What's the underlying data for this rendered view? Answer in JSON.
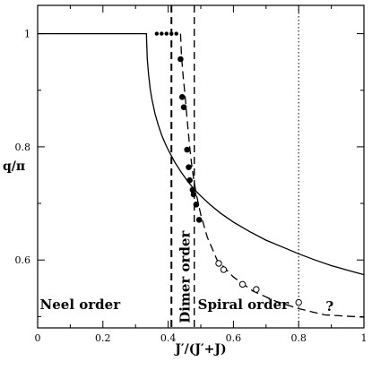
{
  "chart_data": {
    "type": "line",
    "xlabel": "J′/(J′+J)",
    "ylabel": "q/π",
    "xlim": [
      0,
      1
    ],
    "ylim": [
      0.48,
      1.05
    ],
    "x_ticks": [
      0,
      0.2,
      0.4,
      0.6,
      0.8,
      1
    ],
    "x_tick_labels": [
      "0",
      "0.2",
      "0.4",
      "0.6",
      "0.8",
      "1"
    ],
    "y_ticks": [
      0.6,
      0.8,
      1
    ],
    "y_tick_labels": [
      "0.6",
      "0.8",
      "1"
    ],
    "grid": false,
    "solid_curve": [
      [
        0,
        1.0
      ],
      [
        0.333,
        1.0
      ],
      [
        0.3333,
        1.0
      ],
      [
        0.336,
        0.955
      ],
      [
        0.34,
        0.927
      ],
      [
        0.345,
        0.902
      ],
      [
        0.35,
        0.885
      ],
      [
        0.36,
        0.858
      ],
      [
        0.37,
        0.838
      ],
      [
        0.38,
        0.821
      ],
      [
        0.39,
        0.807
      ],
      [
        0.4,
        0.795
      ],
      [
        0.42,
        0.773
      ],
      [
        0.44,
        0.755
      ],
      [
        0.46,
        0.739
      ],
      [
        0.48,
        0.725
      ],
      [
        0.5,
        0.713
      ],
      [
        0.53,
        0.697
      ],
      [
        0.56,
        0.683
      ],
      [
        0.6,
        0.667
      ],
      [
        0.65,
        0.65
      ],
      [
        0.7,
        0.635
      ],
      [
        0.75,
        0.623
      ],
      [
        0.8,
        0.611
      ],
      [
        0.85,
        0.6
      ],
      [
        0.9,
        0.59
      ],
      [
        0.95,
        0.582
      ],
      [
        1.0,
        0.574
      ]
    ],
    "dashed_curve": [
      [
        0.438,
        1.0
      ],
      [
        0.441,
        0.96
      ],
      [
        0.446,
        0.925
      ],
      [
        0.452,
        0.89
      ],
      [
        0.458,
        0.85
      ],
      [
        0.466,
        0.8
      ],
      [
        0.474,
        0.76
      ],
      [
        0.485,
        0.72
      ],
      [
        0.5,
        0.68
      ],
      [
        0.52,
        0.64
      ],
      [
        0.55,
        0.6
      ],
      [
        0.6,
        0.57
      ],
      [
        0.66,
        0.545
      ],
      [
        0.73,
        0.527
      ],
      [
        0.8,
        0.514
      ],
      [
        0.88,
        0.503
      ],
      [
        1.0,
        0.499
      ]
    ],
    "filled_points": [
      [
        0.365,
        1.0
      ],
      [
        0.38,
        1.0
      ],
      [
        0.395,
        1.0
      ],
      [
        0.41,
        1.0
      ],
      [
        0.425,
        1.0
      ],
      [
        0.438,
        0.955
      ],
      [
        0.443,
        0.888
      ],
      [
        0.448,
        0.87
      ],
      [
        0.458,
        0.795
      ],
      [
        0.463,
        0.764
      ],
      [
        0.466,
        0.741
      ],
      [
        0.475,
        0.724
      ],
      [
        0.478,
        0.716
      ],
      [
        0.486,
        0.698
      ],
      [
        0.495,
        0.671
      ]
    ],
    "open_points": [
      [
        0.555,
        0.594
      ],
      [
        0.57,
        0.583
      ],
      [
        0.628,
        0.557
      ],
      [
        0.67,
        0.548
      ],
      [
        0.8,
        0.525
      ]
    ],
    "vertical_lines": [
      {
        "x": 0.41,
        "style": "dashed-thick"
      },
      {
        "x": 0.48,
        "style": "dashed"
      },
      {
        "x": 0.8,
        "style": "dotted"
      }
    ],
    "region_labels": [
      {
        "text": "Neel order",
        "x": 0.13,
        "y": 0.513
      },
      {
        "text": "Dimer order",
        "x": 0.465,
        "y": 0.57
      },
      {
        "text": "Spiral order",
        "x": 0.63,
        "y": 0.513
      },
      {
        "text": "?",
        "x": 0.895,
        "y": 0.51
      }
    ]
  }
}
